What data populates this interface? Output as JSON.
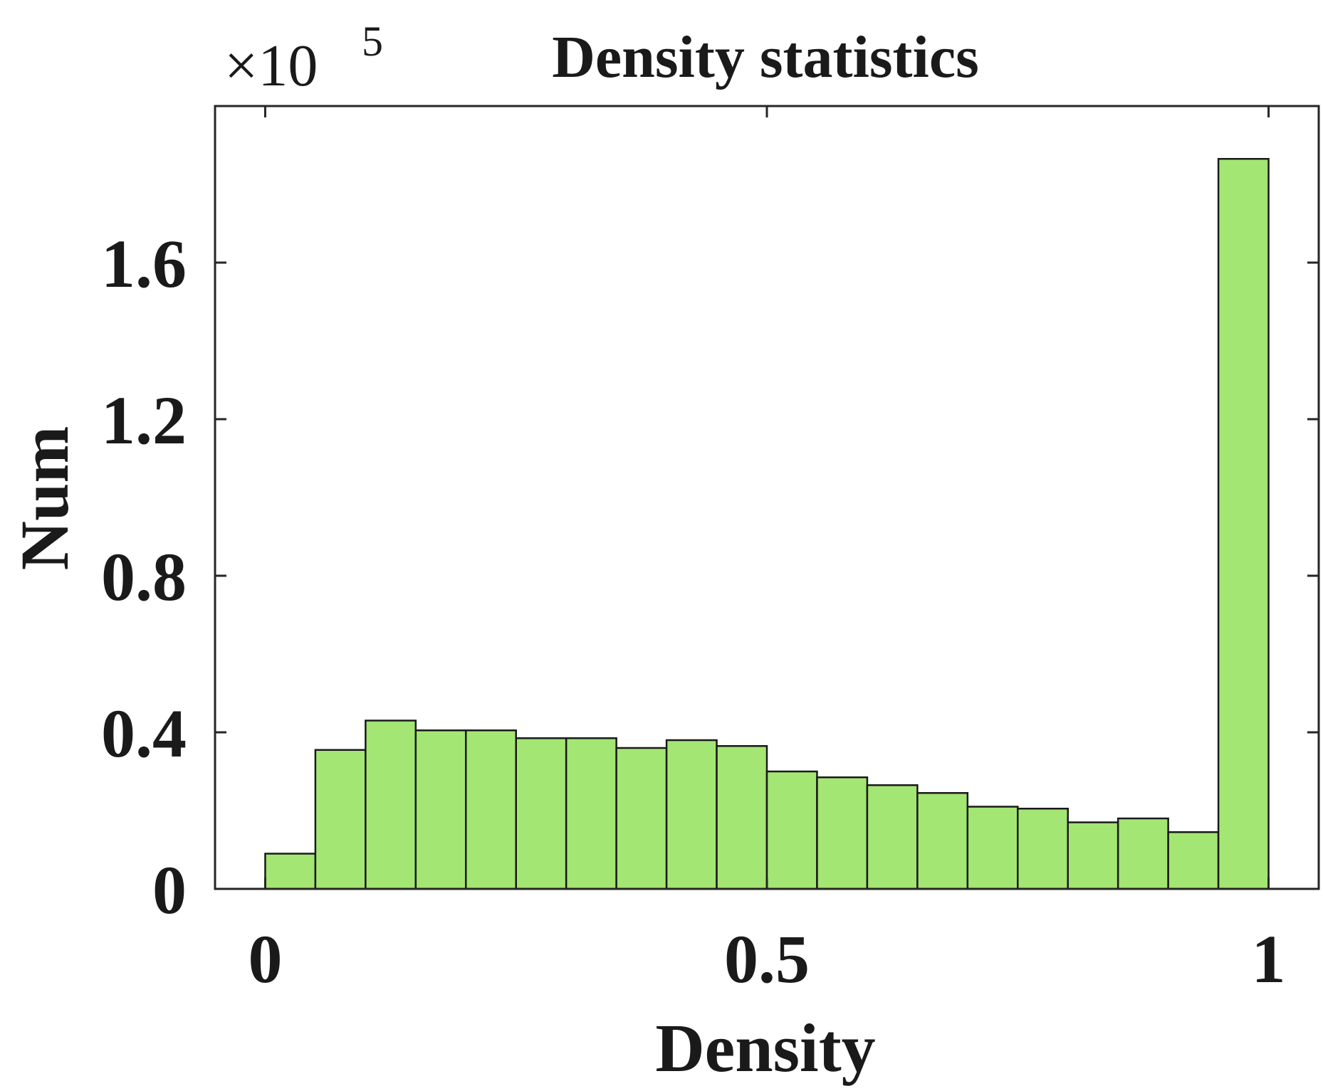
{
  "chart_data": {
    "type": "bar",
    "title": "Density statistics",
    "xlabel": "Density",
    "ylabel": "Num",
    "y_exponent_label": {
      "base": "×10",
      "power": "5"
    },
    "xlim": [
      -0.05,
      1.05
    ],
    "ylim": [
      0,
      2.0
    ],
    "x_ticks": [
      {
        "value": 0,
        "label": "0"
      },
      {
        "value": 0.5,
        "label": "0.5"
      },
      {
        "value": 1,
        "label": "1"
      }
    ],
    "y_ticks": [
      {
        "value": 0,
        "label": "0"
      },
      {
        "value": 0.4,
        "label": "0.4"
      },
      {
        "value": 0.8,
        "label": "0.8"
      },
      {
        "value": 1.2,
        "label": "1.2"
      },
      {
        "value": 1.6,
        "label": "1.6"
      }
    ],
    "bin_width": 0.05,
    "bin_starts": [
      0.0,
      0.05,
      0.1,
      0.15,
      0.2,
      0.25,
      0.3,
      0.35,
      0.4,
      0.45,
      0.5,
      0.55,
      0.6,
      0.65,
      0.7,
      0.75,
      0.8,
      0.85,
      0.9,
      0.95
    ],
    "values": [
      0.09,
      0.355,
      0.43,
      0.405,
      0.405,
      0.385,
      0.385,
      0.36,
      0.38,
      0.365,
      0.3,
      0.285,
      0.265,
      0.245,
      0.21,
      0.205,
      0.17,
      0.18,
      0.145,
      1.865
    ],
    "grid": false,
    "box": true,
    "colors": {
      "bar_fill": "#a4e673",
      "bar_edge": "#1a1a1a",
      "axis": "#262626"
    }
  }
}
